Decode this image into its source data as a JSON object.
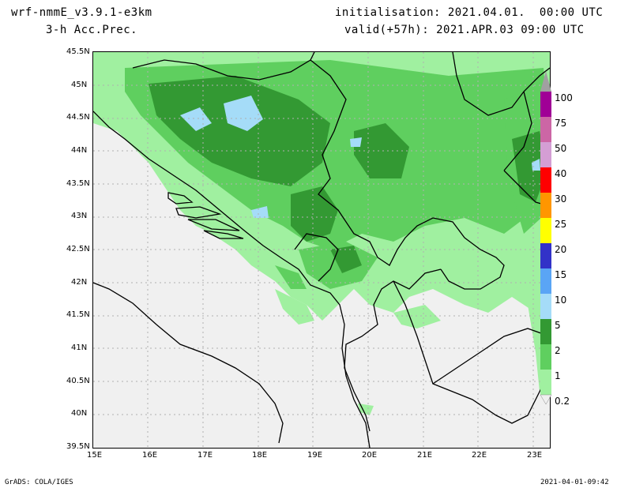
{
  "header": {
    "model": "wrf-nmmE_v3.9.1-e3km",
    "field": "3-h Acc.Prec.",
    "initialisation": "initialisation: 2021.04.01.  00:00 UTC",
    "valid": "valid(+57h): 2021.APR.03 09:00 UTC"
  },
  "footer": {
    "credit": "GrADS: COLA/IGES",
    "timestamp": "2021-04-01-09:42"
  },
  "map": {
    "lat_labels": [
      "45.5N",
      "45N",
      "44.5N",
      "44N",
      "43.5N",
      "43N",
      "42.5N",
      "42N",
      "41.5N",
      "41N",
      "40.5N",
      "40N",
      "39.5N"
    ],
    "lon_labels": [
      "15E",
      "16E",
      "17E",
      "18E",
      "19E",
      "20E",
      "21E",
      "22E",
      "23E"
    ],
    "lat_range": [
      39.5,
      45.5
    ],
    "lon_range": [
      15,
      23.3
    ],
    "background_color": "#f0f0f0",
    "grid": "dotted"
  },
  "colorbar": {
    "labels": [
      "0.2",
      "1",
      "2",
      "5",
      "10",
      "15",
      "20",
      "25",
      "30",
      "40",
      "50",
      "75",
      "100"
    ],
    "colors": [
      "#a0f0a0",
      "#5fcf5f",
      "#339933",
      "#a5dcf8",
      "#5aa5f5",
      "#3232c8",
      "#ffff00",
      "#ff9600",
      "#ff0000",
      "#d49ed4",
      "#cc66a5",
      "#a00096",
      "#a0a0a0"
    ]
  }
}
